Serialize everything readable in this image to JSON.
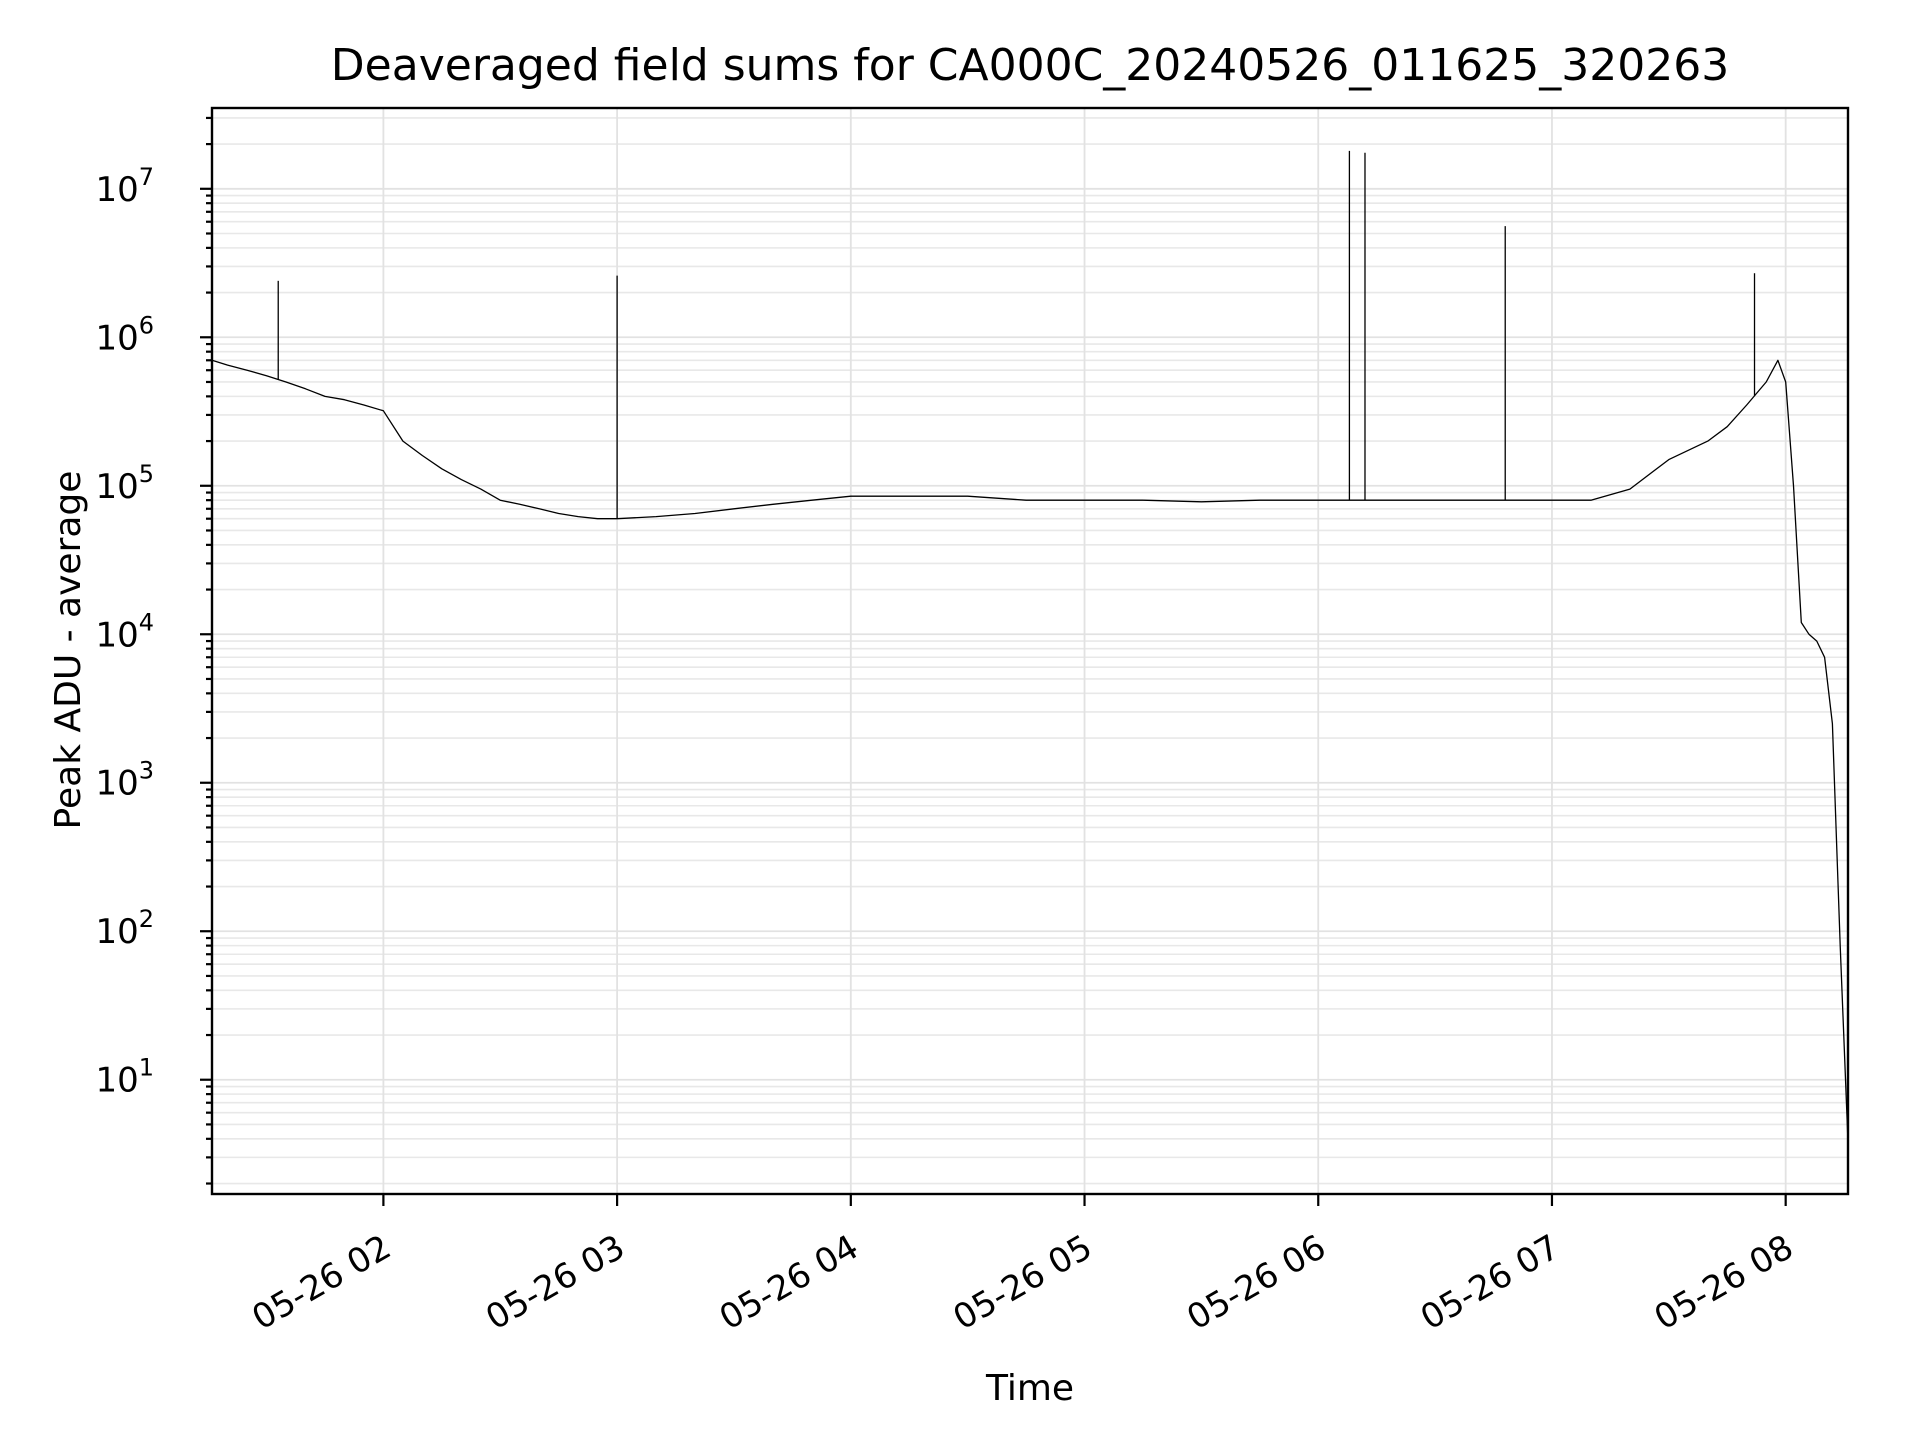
{
  "chart_data": {
    "type": "line",
    "title": "Deaveraged field sums for CA000C_20240526_011625_320263",
    "xlabel": "Time",
    "ylabel": "Peak ADU - average",
    "yscale": "log",
    "grid": true,
    "xlim": [
      "05-26 01:16",
      "05-26 08:16"
    ],
    "ylim": [
      1.7,
      35000000
    ],
    "x_ticks": [
      "05-26 02",
      "05-26 03",
      "05-26 04",
      "05-26 05",
      "05-26 06",
      "05-26 07",
      "05-26 08"
    ],
    "y_ticks": [
      {
        "base": "10",
        "exp": "1"
      },
      {
        "base": "10",
        "exp": "2"
      },
      {
        "base": "10",
        "exp": "3"
      },
      {
        "base": "10",
        "exp": "4"
      },
      {
        "base": "10",
        "exp": "5"
      },
      {
        "base": "10",
        "exp": "6"
      },
      {
        "base": "10",
        "exp": "7"
      }
    ],
    "series": [
      {
        "color": "#000000",
        "x": [
          "05-26 01:16",
          "05-26 01:20",
          "05-26 01:25",
          "05-26 01:30",
          "05-26 01:35",
          "05-26 01:40",
          "05-26 01:45",
          "05-26 01:50",
          "05-26 01:55",
          "05-26 02:00",
          "05-26 02:05",
          "05-26 02:10",
          "05-26 02:15",
          "05-26 02:20",
          "05-26 02:25",
          "05-26 02:30",
          "05-26 02:35",
          "05-26 02:40",
          "05-26 02:45",
          "05-26 02:50",
          "05-26 02:55",
          "05-26 03:00",
          "05-26 03:10",
          "05-26 03:20",
          "05-26 03:30",
          "05-26 03:40",
          "05-26 03:50",
          "05-26 04:00",
          "05-26 04:15",
          "05-26 04:30",
          "05-26 04:45",
          "05-26 05:00",
          "05-26 05:15",
          "05-26 05:30",
          "05-26 05:45",
          "05-26 06:00",
          "05-26 06:15",
          "05-26 06:30",
          "05-26 06:45",
          "05-26 07:00",
          "05-26 07:10",
          "05-26 07:20",
          "05-26 07:30",
          "05-26 07:40",
          "05-26 07:45",
          "05-26 07:50",
          "05-26 07:55",
          "05-26 07:58",
          "05-26 08:00",
          "05-26 08:02",
          "05-26 08:04",
          "05-26 08:06",
          "05-26 08:08",
          "05-26 08:10",
          "05-26 08:12",
          "05-26 08:14",
          "05-26 08:16"
        ],
        "y": [
          700000,
          650000,
          600000,
          550000,
          500000,
          450000,
          400000,
          380000,
          350000,
          320000,
          200000,
          160000,
          130000,
          110000,
          95000,
          80000,
          75000,
          70000,
          65000,
          62000,
          60000,
          60000,
          62000,
          65000,
          70000,
          75000,
          80000,
          85000,
          85000,
          85000,
          80000,
          80000,
          80000,
          78000,
          80000,
          80000,
          80000,
          80000,
          80000,
          80000,
          80000,
          95000,
          150000,
          200000,
          250000,
          350000,
          500000,
          700000,
          500000,
          100000,
          12000,
          10000,
          9000,
          7000,
          2500,
          80,
          3.8
        ]
      }
    ],
    "spikes": [
      {
        "x": "05-26 01:33",
        "y": 2400000
      },
      {
        "x": "05-26 03:00",
        "y": 2600000
      },
      {
        "x": "05-26 06:08",
        "y": 18000000
      },
      {
        "x": "05-26 06:12",
        "y": 17500000
      },
      {
        "x": "05-26 06:48",
        "y": 5600000
      },
      {
        "x": "05-26 07:52",
        "y": 2700000
      }
    ]
  }
}
